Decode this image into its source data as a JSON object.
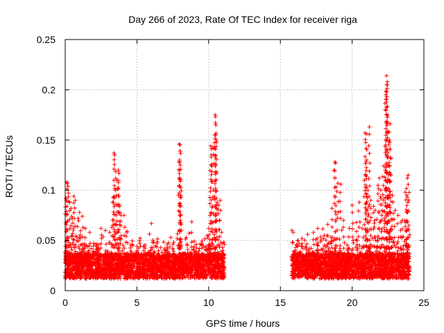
{
  "chart_data": {
    "type": "scatter",
    "title": "Day 266 of 2023, Rate Of TEC Index for receiver riga",
    "xlabel": "GPS time / hours",
    "ylabel": "ROTI / TECUs",
    "xlim": [
      0,
      25
    ],
    "ylim": [
      0,
      0.25
    ],
    "xticks": [
      0,
      5,
      10,
      15,
      20,
      25
    ],
    "xtick_labels": [
      "0",
      "5",
      "10",
      "15",
      "20",
      "25"
    ],
    "yticks": [
      0,
      0.05,
      0.1,
      0.15,
      0.2,
      0.25
    ],
    "ytick_labels": [
      "0",
      "0.05",
      "0.1",
      "0.15",
      "0.2",
      "0.25"
    ],
    "grid": true,
    "marker": "+",
    "color": "#ff0000",
    "series": [
      {
        "name": "ROTI",
        "segments": [
          [
            0,
            11.1
          ],
          [
            15.8,
            24
          ]
        ],
        "points": [
          [
            0.05,
            0.092
          ],
          [
            0.1,
            0.108
          ],
          [
            0.15,
            0.107
          ],
          [
            0.2,
            0.104
          ],
          [
            0.3,
            0.088
          ],
          [
            0.4,
            0.082
          ],
          [
            0.5,
            0.072
          ],
          [
            0.6,
            0.094
          ],
          [
            0.7,
            0.09
          ],
          [
            0.9,
            0.072
          ],
          [
            1.0,
            0.078
          ],
          [
            1.2,
            0.074
          ],
          [
            1.4,
            0.062
          ],
          [
            1.7,
            0.058
          ],
          [
            2.0,
            0.047
          ],
          [
            2.3,
            0.04
          ],
          [
            2.5,
            0.062
          ],
          [
            2.8,
            0.06
          ],
          [
            3.1,
            0.058
          ],
          [
            3.3,
            0.088
          ],
          [
            3.4,
            0.137
          ],
          [
            3.45,
            0.135
          ],
          [
            3.5,
            0.1
          ],
          [
            3.6,
            0.11
          ],
          [
            3.7,
            0.12
          ],
          [
            3.75,
            0.117
          ],
          [
            3.8,
            0.084
          ],
          [
            3.9,
            0.075
          ],
          [
            4.1,
            0.075
          ],
          [
            4.3,
            0.058
          ],
          [
            4.7,
            0.045
          ],
          [
            5.0,
            0.04
          ],
          [
            5.5,
            0.044
          ],
          [
            6.0,
            0.043
          ],
          [
            6.5,
            0.04
          ],
          [
            7.0,
            0.04
          ],
          [
            7.5,
            0.046
          ],
          [
            7.8,
            0.052
          ],
          [
            7.95,
            0.146
          ],
          [
            8.0,
            0.145
          ],
          [
            7.97,
            0.13
          ],
          [
            8.02,
            0.125
          ],
          [
            8.0,
            0.111
          ],
          [
            8.05,
            0.084
          ],
          [
            8.1,
            0.06
          ],
          [
            8.5,
            0.045
          ],
          [
            9.0,
            0.044
          ],
          [
            9.5,
            0.046
          ],
          [
            9.8,
            0.044
          ],
          [
            10.0,
            0.062
          ],
          [
            10.1,
            0.075
          ],
          [
            10.15,
            0.144
          ],
          [
            10.2,
            0.141
          ],
          [
            10.3,
            0.142
          ],
          [
            10.45,
            0.175
          ],
          [
            10.48,
            0.173
          ],
          [
            10.5,
            0.165
          ],
          [
            10.52,
            0.15
          ],
          [
            10.6,
            0.088
          ],
          [
            10.7,
            0.085
          ],
          [
            10.8,
            0.09
          ],
          [
            10.9,
            0.058
          ],
          [
            11.0,
            0.04
          ],
          [
            15.8,
            0.06
          ],
          [
            15.9,
            0.058
          ],
          [
            16.2,
            0.05
          ],
          [
            16.5,
            0.052
          ],
          [
            16.9,
            0.056
          ],
          [
            17.3,
            0.058
          ],
          [
            17.6,
            0.062
          ],
          [
            18.0,
            0.052
          ],
          [
            18.3,
            0.066
          ],
          [
            18.6,
            0.082
          ],
          [
            18.8,
            0.128
          ],
          [
            18.85,
            0.127
          ],
          [
            19.0,
            0.107
          ],
          [
            19.2,
            0.106
          ],
          [
            19.4,
            0.07
          ],
          [
            19.8,
            0.062
          ],
          [
            20.0,
            0.085
          ],
          [
            20.3,
            0.068
          ],
          [
            20.5,
            0.088
          ],
          [
            20.7,
            0.062
          ],
          [
            20.9,
            0.157
          ],
          [
            21.0,
            0.156
          ],
          [
            21.2,
            0.163
          ],
          [
            21.0,
            0.13
          ],
          [
            20.95,
            0.115
          ],
          [
            21.1,
            0.1
          ],
          [
            21.3,
            0.09
          ],
          [
            21.5,
            0.084
          ],
          [
            21.6,
            0.08
          ],
          [
            21.8,
            0.105
          ],
          [
            21.9,
            0.112
          ],
          [
            22.0,
            0.1
          ],
          [
            22.1,
            0.08
          ],
          [
            22.2,
            0.124
          ],
          [
            22.3,
            0.12
          ],
          [
            22.35,
            0.195
          ],
          [
            22.4,
            0.205
          ],
          [
            22.45,
            0.208
          ],
          [
            22.4,
            0.214
          ],
          [
            22.42,
            0.193
          ],
          [
            22.6,
            0.15
          ],
          [
            22.55,
            0.145
          ],
          [
            22.65,
            0.166
          ],
          [
            22.7,
            0.115
          ],
          [
            22.8,
            0.095
          ],
          [
            23.0,
            0.08
          ],
          [
            23.2,
            0.075
          ],
          [
            23.4,
            0.068
          ],
          [
            23.5,
            0.07
          ],
          [
            23.7,
            0.098
          ],
          [
            23.8,
            0.095
          ],
          [
            23.85,
            0.112
          ],
          [
            23.9,
            0.115
          ],
          [
            23.8,
            0.078
          ],
          [
            23.95,
            0.065
          ]
        ]
      }
    ]
  }
}
